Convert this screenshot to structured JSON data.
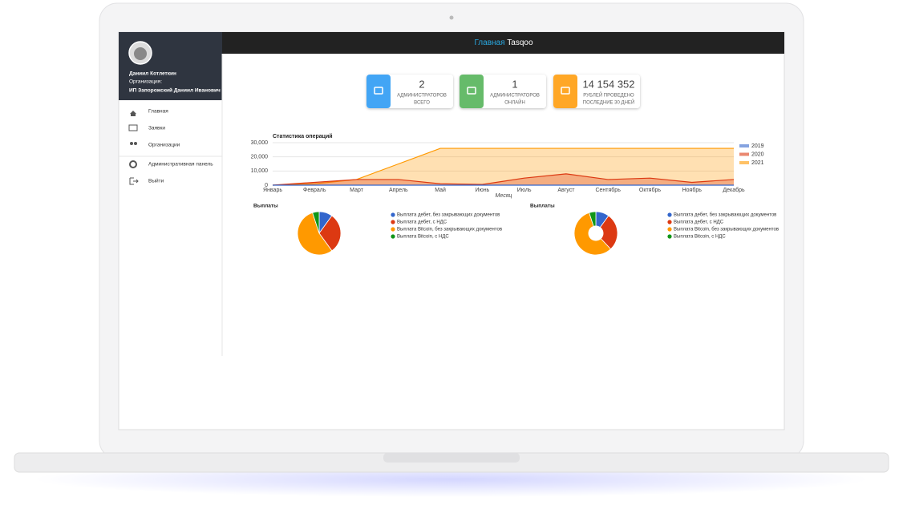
{
  "topbar": {
    "home": "Главная",
    "brand": "Tasqoo"
  },
  "profile": {
    "name": "Даниил Котлеткин",
    "org_label": "Организация:",
    "org": "ИП Запорожский Даниил Иванович"
  },
  "menu": [
    "Главная",
    "Заявки",
    "Организации",
    "Административная панель",
    "Выйти"
  ],
  "stats": [
    {
      "value": 2,
      "label": [
        "АДМИНИСТРАТОРОВ",
        "ВСЕГО"
      ],
      "color": "#42a5f5"
    },
    {
      "value": 1,
      "label": [
        "АДМИНИСТРАТОРОВ",
        "ОНЛАЙН"
      ],
      "color": "#66bb6a"
    },
    {
      "value": {
        "value": 14154352,
        "label": "14 154 352"
      },
      "label": [
        "РУБЛЕЙ ПРОВЕДЕНО",
        "ПОСЛЕДНИЕ 30 ДНЕЙ"
      ],
      "color": "#ffa726"
    }
  ],
  "chart_data": [
    {
      "type": "area",
      "title": "Статистика операций",
      "x_label": "Месяц",
      "categories": [
        "Январь",
        "Февраль",
        "Март",
        "Апрель",
        "Май",
        "Июнь",
        "Июль",
        "Август",
        "Сентябрь",
        "Октябрь",
        "Ноябрь",
        "Декабрь"
      ],
      "ylim": [
        0,
        30000
      ],
      "yticks": [
        0,
        {
          "value": 10000,
          "label": "10,000"
        },
        {
          "value": 20000,
          "label": "20,000"
        },
        {
          "value": 30000,
          "label": "30,000"
        }
      ],
      "grid": true,
      "legend": "right",
      "series": [
        {
          "name": "2019",
          "color": "#3366cc",
          "values": [
            0,
            0,
            0,
            0,
            0,
            0,
            0,
            0,
            0,
            0,
            0,
            0
          ]
        },
        {
          "name": "2020",
          "color": "#dc3912",
          "values": [
            0,
            2000,
            4000,
            4000,
            1000,
            500,
            5000,
            8000,
            4000,
            5000,
            2000,
            4000
          ]
        },
        {
          "name": "2021",
          "color": "#ff9900",
          "values": [
            0,
            1000,
            4000,
            15000,
            26000,
            26000,
            26000,
            26000,
            26000,
            26000,
            26000,
            26000
          ]
        }
      ]
    },
    {
      "type": "pie",
      "title": "Выплаты",
      "categories": [
        "Выплата дебет, без закрывающих документов",
        "Выплата дебет, с НДС",
        "Выплата Bitcoin, без закрывающих документов",
        "Выплата Bitcoin, с НДС"
      ],
      "values": [
        10,
        30,
        55,
        5
      ],
      "colors": [
        "#3366cc",
        "#dc3912",
        "#ff9900",
        "#109618"
      ]
    },
    {
      "type": "donut",
      "title": "Выплаты",
      "categories": [
        "Выплата дебет, без закрывающих документов",
        "Выплата дебет, с НДС",
        "Выплата Bitcoin, без закрывающих документов",
        "Выплата Bitcoin, с НДС"
      ],
      "values": [
        10,
        28,
        57,
        5
      ],
      "colors": [
        "#3366cc",
        "#dc3912",
        "#ff9900",
        "#109618"
      ]
    }
  ]
}
